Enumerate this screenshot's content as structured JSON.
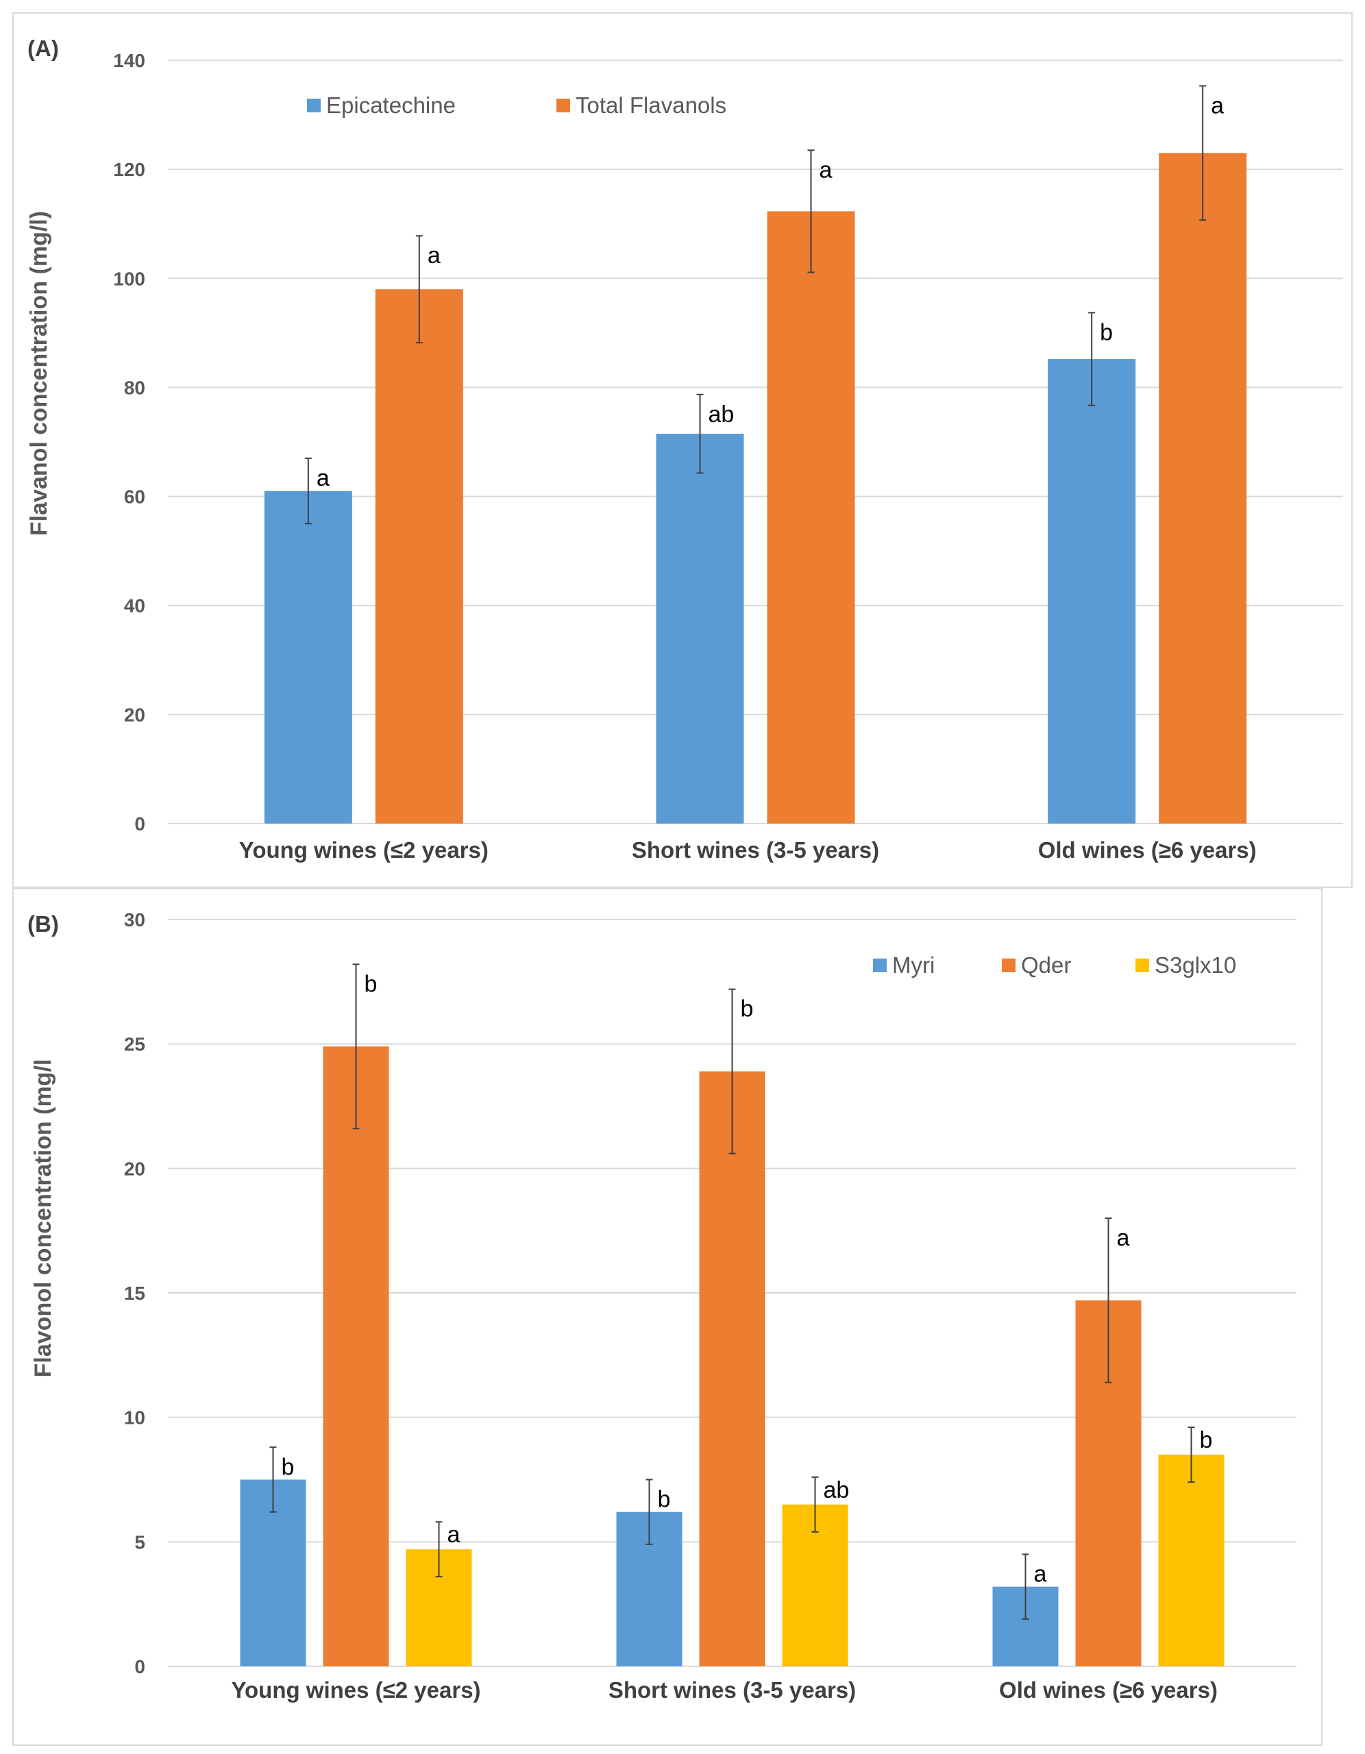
{
  "colors": {
    "blue": "#5b9bd5",
    "orange": "#ed7d31",
    "yellow": "#ffc000"
  },
  "chart_data": [
    {
      "type": "bar",
      "panel_label": "(A)",
      "ylabel": "Flavanol concentration (mg/l)",
      "ylim": [
        0,
        140
      ],
      "yticks": [
        "0",
        "20",
        "40",
        "60",
        "80",
        "100",
        "120",
        "140"
      ],
      "categories": [
        "Young wines (≤2 years)",
        "Short wines (3-5 years)",
        "Old wines (≥6 years)"
      ],
      "series": [
        {
          "name": "Epicatechine",
          "color": "#5b9bd5",
          "values": [
            61,
            71.5,
            85.2
          ],
          "errors": [
            6,
            7.2,
            8.5
          ],
          "letters": [
            "a",
            "ab",
            "b"
          ]
        },
        {
          "name": "Total Flavanols",
          "color": "#ed7d31",
          "values": [
            98,
            112.3,
            123
          ],
          "errors": [
            9.8,
            11.2,
            12.3
          ],
          "letters": [
            "a",
            "a",
            "a"
          ]
        }
      ],
      "legend_position": "top-left"
    },
    {
      "type": "bar",
      "panel_label": "(B)",
      "ylabel": "Flavonol concentration (mg/l",
      "ylim": [
        0,
        30
      ],
      "yticks": [
        "0",
        "5",
        "10",
        "15",
        "20",
        "25",
        "30"
      ],
      "categories": [
        "Young wines (≤2 years)",
        "Short wines (3-5 years)",
        "Old wines (≥6 years)"
      ],
      "series": [
        {
          "name": "Myri",
          "color": "#5b9bd5",
          "values": [
            7.5,
            6.2,
            3.2
          ],
          "errors": [
            1.3,
            1.3,
            1.3
          ],
          "letters": [
            "b",
            "b",
            "a"
          ]
        },
        {
          "name": "Qder",
          "color": "#ed7d31",
          "values": [
            24.9,
            23.9,
            14.7
          ],
          "errors": [
            3.3,
            3.3,
            3.3
          ],
          "letters": [
            "b",
            "b",
            "a"
          ]
        },
        {
          "name": "S3glx10",
          "color": "#ffc000",
          "values": [
            4.7,
            6.5,
            8.5
          ],
          "errors": [
            1.1,
            1.1,
            1.1
          ],
          "letters": [
            "a",
            "ab",
            "b"
          ]
        }
      ],
      "legend_position": "top-right"
    }
  ]
}
